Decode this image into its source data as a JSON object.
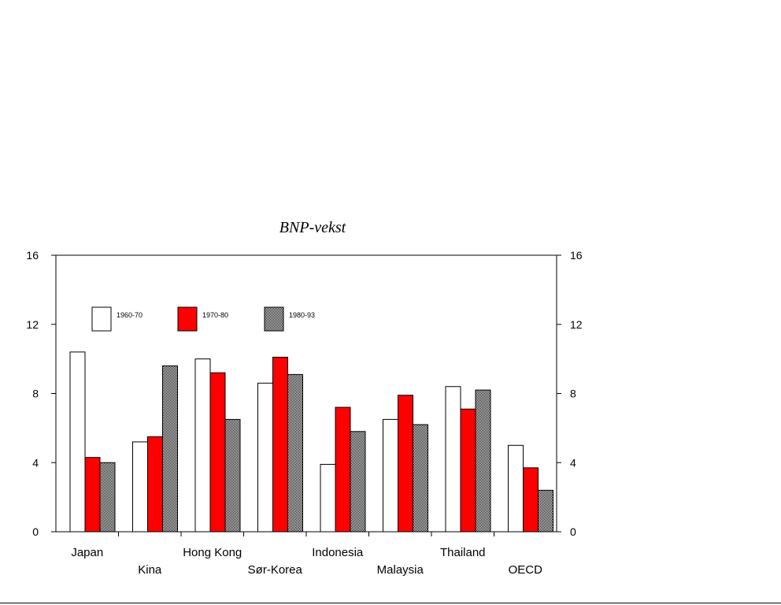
{
  "chart_data": {
    "type": "bar",
    "title": "BNP-vekst",
    "categories": [
      "Japan",
      "Kina",
      "Hong Kong",
      "Sør-Korea",
      "Indonesia",
      "Malaysia",
      "Thailand",
      "OECD"
    ],
    "series": [
      {
        "name": "1960-70",
        "fill": "white",
        "values": [
          10.4,
          5.2,
          10.0,
          8.6,
          3.9,
          6.5,
          8.4,
          5.0
        ]
      },
      {
        "name": "1970-80",
        "fill": "red",
        "values": [
          4.3,
          5.5,
          9.2,
          10.1,
          7.2,
          7.9,
          7.1,
          3.7
        ]
      },
      {
        "name": "1980-93",
        "fill": "checkered",
        "values": [
          4.0,
          9.6,
          6.5,
          9.1,
          5.8,
          6.2,
          8.2,
          2.4
        ]
      }
    ],
    "xlabel": "",
    "ylabel": "",
    "ylim": [
      0,
      16
    ],
    "yticks": [
      0,
      4,
      8,
      12,
      16
    ],
    "yticks_right": [
      0,
      4,
      8,
      12,
      16
    ],
    "legend_position": "top-left",
    "grid": false
  },
  "colors": {
    "series1": "#ffffff",
    "series2": "#ff0000",
    "series3": "#8c8c8c",
    "axis": "#000000"
  }
}
